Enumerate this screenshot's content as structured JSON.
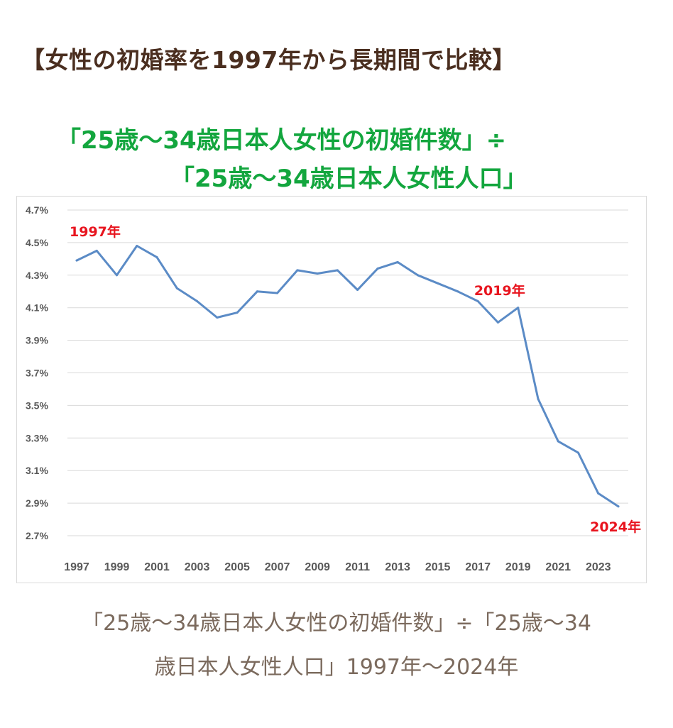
{
  "heading": "【女性の初婚率を1997年から長期間で比較】",
  "caption": {
    "line1": "「25歳〜34歳日本人女性の初婚件数」÷「25歳〜34",
    "line2": "歳日本人女性人口」1997年〜2024年"
  },
  "colors": {
    "line": "#5b8bc6",
    "annotation": "#e8141e",
    "title": "#13a63e",
    "grid": "#d9d9d9"
  },
  "chart_data": {
    "type": "line",
    "title_line1": "「25歳〜34歳日本人女性の初婚件数」÷",
    "title_line2": "「25歳〜34歳日本人女性人口」",
    "xlabel": "",
    "ylabel": "",
    "ylim": [
      2.7,
      4.7
    ],
    "y_ticks": [
      "4.7%",
      "4.5%",
      "4.3%",
      "4.1%",
      "3.9%",
      "3.7%",
      "3.5%",
      "3.3%",
      "3.1%",
      "2.9%",
      "2.7%"
    ],
    "x_tick_labels": [
      "1997",
      "1999",
      "2001",
      "2003",
      "2005",
      "2007",
      "2009",
      "2011",
      "2013",
      "2015",
      "2017",
      "2019",
      "2021",
      "2023"
    ],
    "grid": "horizontal",
    "x": [
      1997,
      1998,
      1999,
      2000,
      2001,
      2002,
      2003,
      2004,
      2005,
      2006,
      2007,
      2008,
      2009,
      2010,
      2011,
      2012,
      2013,
      2014,
      2015,
      2016,
      2017,
      2018,
      2019,
      2020,
      2021,
      2022,
      2023,
      2024
    ],
    "values": [
      4.39,
      4.45,
      4.3,
      4.48,
      4.41,
      4.22,
      4.14,
      4.04,
      4.07,
      4.2,
      4.19,
      4.33,
      4.31,
      4.33,
      4.21,
      4.34,
      4.38,
      4.3,
      4.25,
      4.2,
      4.14,
      4.01,
      4.1,
      3.54,
      3.28,
      3.21,
      2.96,
      2.88
    ],
    "annotations": [
      {
        "text": "1997年",
        "x": 1997
      },
      {
        "text": "2019年",
        "x": 2019
      },
      {
        "text": "2024年",
        "x": 2024
      }
    ]
  }
}
